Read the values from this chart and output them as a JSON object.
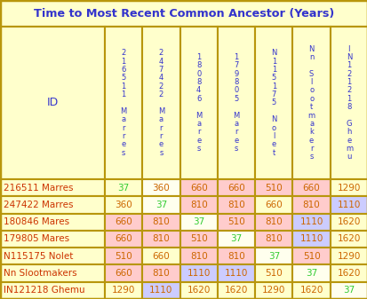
{
  "title": "Time to Most Recent Common Ancestor (Years)",
  "title_color": "#3333cc",
  "title_bg": "#ffffcc",
  "border_color": "#b8960c",
  "header_bg": "#ffffcc",
  "header_text_color": "#3333cc",
  "row_label_color": "#cc3300",
  "col_header_texts": [
    "2\n1\n6\n5\n1\n1\n \nM\na\nr\nr\ne\ns",
    "2\n4\n7\n4\n2\n2\n \nM\na\nr\nr\ne\ns",
    "1\n8\n0\n8\n4\n6\n \nM\na\nr\ne\ns",
    "1\n7\n9\n8\n0\n5\n \nM\na\nr\ne\ns",
    "N\n1\n1\n5\n1\n7\n5\n \nN\no\nl\ne\nt",
    "N\nn\n \nS\nl\no\no\nt\nm\na\nk\ne\nr\ns",
    "I\nN\n1\n2\n1\n2\n1\n8\n \nG\nh\ne\nm\nu"
  ],
  "row_labels": [
    "216511 Marres",
    "247422 Marres",
    "180846 Mares",
    "179805 Mares",
    "N115175 Nolet",
    "Nn Slootmakers",
    "IN121218 Ghemu"
  ],
  "values": [
    [
      37,
      360,
      660,
      660,
      510,
      660,
      1290
    ],
    [
      360,
      37,
      810,
      810,
      660,
      810,
      1110
    ],
    [
      660,
      810,
      37,
      510,
      810,
      1110,
      1620
    ],
    [
      660,
      810,
      510,
      37,
      810,
      1110,
      1620
    ],
    [
      510,
      660,
      810,
      810,
      37,
      510,
      1290
    ],
    [
      660,
      810,
      1110,
      1110,
      510,
      37,
      1620
    ],
    [
      1290,
      1110,
      1620,
      1620,
      1290,
      1620,
      37
    ]
  ],
  "cell_colors": [
    [
      "#ffffcc",
      "#ffffee",
      "#ffcccc",
      "#ffcccc",
      "#ffcccc",
      "#ffcccc",
      "#ffffcc"
    ],
    [
      "#ffffcc",
      "#ffffee",
      "#ffcccc",
      "#ffcccc",
      "#ffffcc",
      "#ffcccc",
      "#ccccff"
    ],
    [
      "#ffcccc",
      "#ffcccc",
      "#ffffee",
      "#ffcccc",
      "#ffcccc",
      "#ccccff",
      "#ffffcc"
    ],
    [
      "#ffcccc",
      "#ffcccc",
      "#ffcccc",
      "#ffffee",
      "#ffcccc",
      "#ccccff",
      "#ffffcc"
    ],
    [
      "#ffcccc",
      "#ffffcc",
      "#ffcccc",
      "#ffcccc",
      "#ffffee",
      "#ffcccc",
      "#ffffcc"
    ],
    [
      "#ffcccc",
      "#ffcccc",
      "#ccccff",
      "#ccccff",
      "#ffffcc",
      "#ffffee",
      "#ffffcc"
    ],
    [
      "#ffffcc",
      "#ccccff",
      "#ffffcc",
      "#ffffcc",
      "#ffffcc",
      "#ffffcc",
      "#ffffee"
    ]
  ],
  "diag_text_color": "#33cc33",
  "normal_text_color": "#cc6600",
  "figsize": [
    4.14,
    3.37
  ],
  "dpi": 100
}
